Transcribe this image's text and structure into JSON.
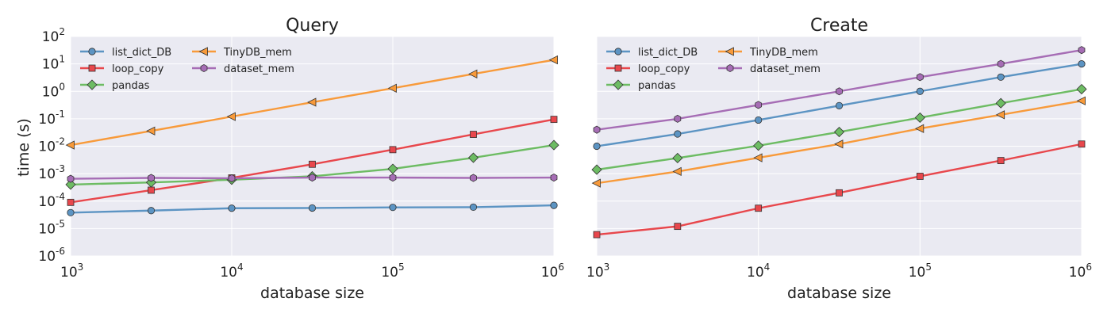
{
  "figure": {
    "ylabel": "time (s)",
    "x_ticks": [
      {
        "base": "10",
        "exp": "3"
      },
      {
        "base": "10",
        "exp": "4"
      },
      {
        "base": "10",
        "exp": "5"
      },
      {
        "base": "10",
        "exp": "6"
      }
    ],
    "y_ticks": [
      {
        "base": "10",
        "exp": "-6"
      },
      {
        "base": "10",
        "exp": "-5"
      },
      {
        "base": "10",
        "exp": "-4"
      },
      {
        "base": "10",
        "exp": "-3"
      },
      {
        "base": "10",
        "exp": "-2"
      },
      {
        "base": "10",
        "exp": "-1"
      },
      {
        "base": "10",
        "exp": "0"
      },
      {
        "base": "10",
        "exp": "1"
      },
      {
        "base": "10",
        "exp": "2"
      }
    ]
  },
  "series_styles": {
    "list_dict_DB": {
      "color": "#5C94C3",
      "marker": "circle"
    },
    "loop_copy": {
      "color": "#E8474C",
      "marker": "square"
    },
    "pandas": {
      "color": "#6DBC63",
      "marker": "diamond"
    },
    "TinyDB_mem": {
      "color": "#F89A3A",
      "marker": "triangle-left"
    },
    "dataset_mem": {
      "color": "#A66DB5",
      "marker": "hexagon"
    }
  },
  "chart_data": [
    {
      "type": "line",
      "title": "Query",
      "xlabel": "database size",
      "ylabel": "time (s)",
      "xscale": "log",
      "yscale": "log",
      "xlim": [
        1000,
        1000000
      ],
      "ylim": [
        1e-06,
        100
      ],
      "show_y_ticks": true,
      "legend": "top-left",
      "x": [
        1000,
        3162,
        10000,
        31623,
        100000,
        316228,
        1000000
      ],
      "series": [
        {
          "name": "list_dict_DB",
          "values": [
            3.8e-05,
            4.5e-05,
            5.5e-05,
            5.6e-05,
            5.9e-05,
            6e-05,
            7e-05
          ]
        },
        {
          "name": "loop_copy",
          "values": [
            9e-05,
            0.00025,
            0.0007,
            0.0022,
            0.0075,
            0.027,
            0.095
          ]
        },
        {
          "name": "pandas",
          "values": [
            0.0004,
            0.00048,
            0.0006,
            0.0008,
            0.0015,
            0.0038,
            0.011
          ]
        },
        {
          "name": "TinyDB_mem",
          "values": [
            0.011,
            0.036,
            0.12,
            0.4,
            1.3,
            4.3,
            14
          ]
        },
        {
          "name": "dataset_mem",
          "values": [
            0.00065,
            0.0007,
            0.00068,
            0.00072,
            0.00072,
            0.0007,
            0.00072
          ]
        }
      ]
    },
    {
      "type": "line",
      "title": "Create",
      "xlabel": "database size",
      "ylabel": "",
      "xscale": "log",
      "yscale": "log",
      "xlim": [
        1000,
        1000000
      ],
      "ylim": [
        1e-06,
        100
      ],
      "show_y_ticks": false,
      "legend": "top-left",
      "x": [
        1000,
        3162,
        10000,
        31623,
        100000,
        316228,
        1000000
      ],
      "series": [
        {
          "name": "list_dict_DB",
          "values": [
            0.01,
            0.028,
            0.09,
            0.3,
            1.0,
            3.3,
            10
          ]
        },
        {
          "name": "loop_copy",
          "values": [
            6e-06,
            1.2e-05,
            5.5e-05,
            0.0002,
            0.0008,
            0.003,
            0.012
          ]
        },
        {
          "name": "pandas",
          "values": [
            0.0014,
            0.0037,
            0.0105,
            0.033,
            0.11,
            0.37,
            1.2
          ]
        },
        {
          "name": "TinyDB_mem",
          "values": [
            0.00045,
            0.0012,
            0.0038,
            0.012,
            0.044,
            0.14,
            0.45
          ]
        },
        {
          "name": "dataset_mem",
          "values": [
            0.04,
            0.1,
            0.32,
            1.0,
            3.3,
            10,
            32
          ]
        }
      ]
    }
  ]
}
